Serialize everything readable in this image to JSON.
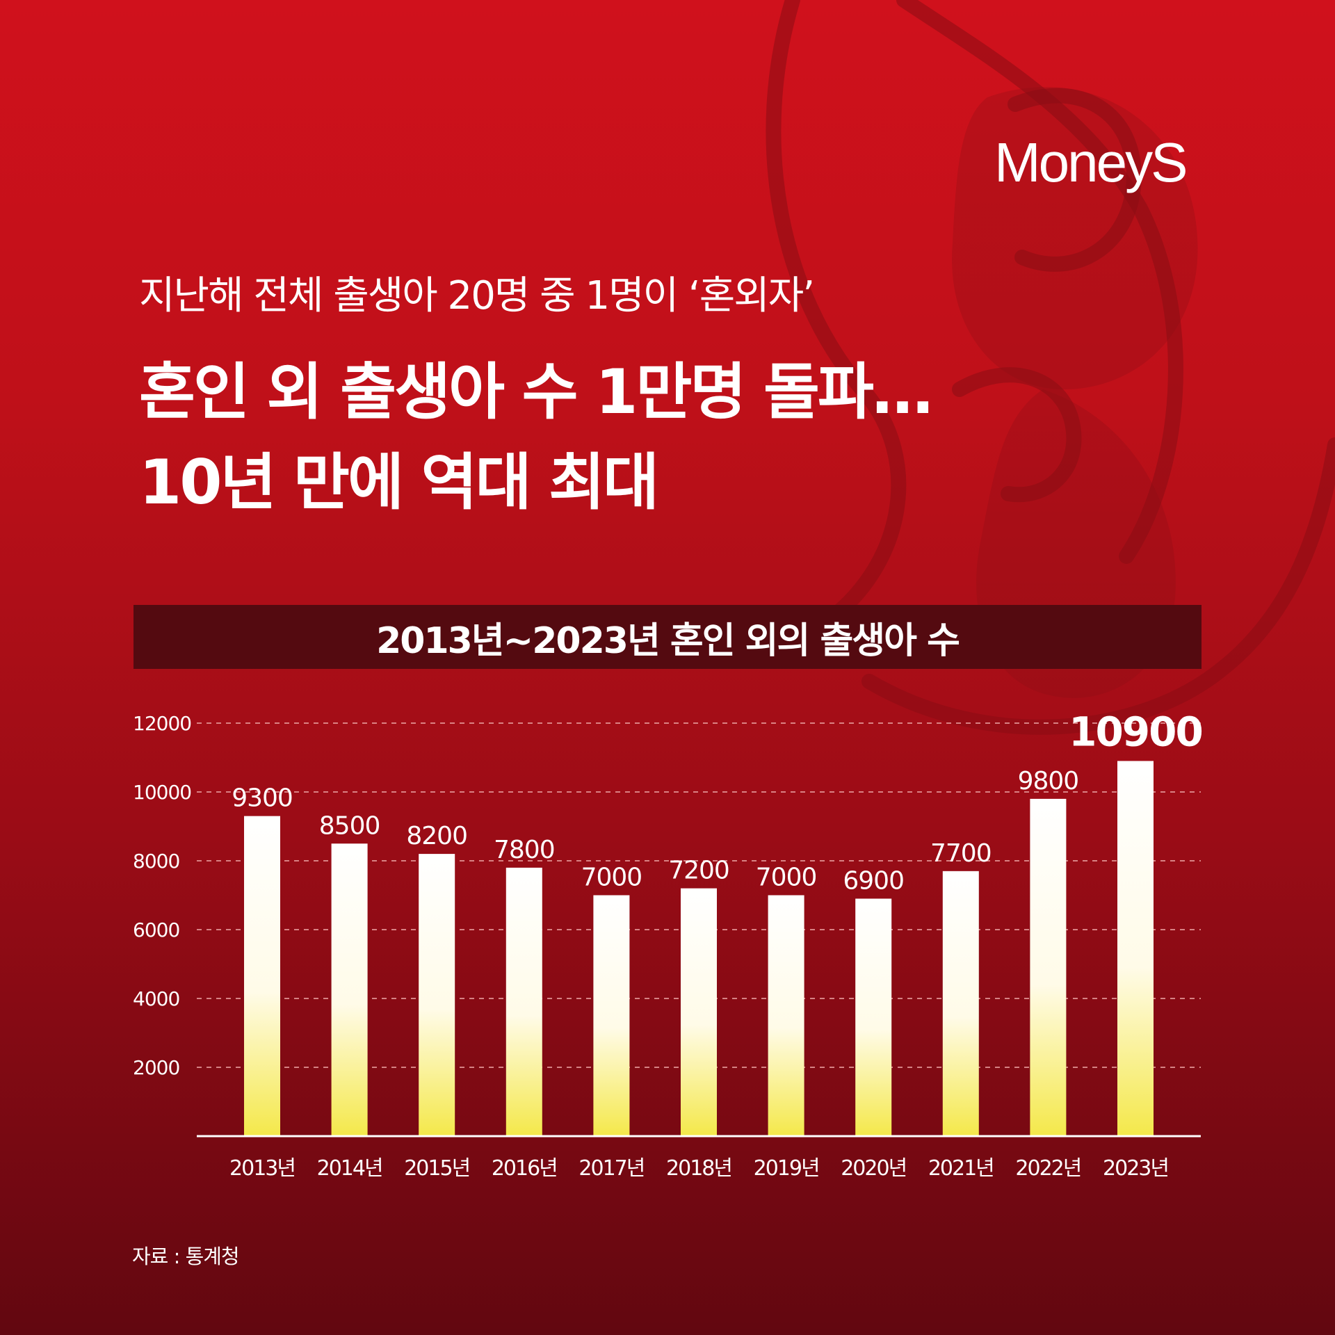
{
  "brand": {
    "logo_text": "MoneyS"
  },
  "header": {
    "subtitle": "지난해 전체 출생아 20명 중 1명이 ‘혼외자’",
    "title_line1": "혼인 외 출생아 수 1만명 돌파…",
    "title_line2": "10년 만에 역대 최대"
  },
  "chart_data": {
    "type": "bar",
    "title": "2013년~2023년 혼인 외의 출생아 수",
    "categories": [
      "2013년",
      "2014년",
      "2015년",
      "2016년",
      "2017년",
      "2018년",
      "2019년",
      "2020년",
      "2021년",
      "2022년",
      "2023년"
    ],
    "values": [
      9300,
      8500,
      8200,
      7800,
      7000,
      7200,
      7000,
      6900,
      7700,
      9800,
      10900
    ],
    "data_labels": [
      "9300",
      "8500",
      "8200",
      "7800",
      "7000",
      "7200",
      "7000",
      "6900",
      "7700",
      "9800",
      "10900"
    ],
    "y_ticks": [
      2000,
      4000,
      6000,
      8000,
      10000,
      12000
    ],
    "y_tick_labels": [
      "2000",
      "4000",
      "6000",
      "8000",
      "10000",
      "12000"
    ],
    "ylim": [
      0,
      12000
    ],
    "grid": true,
    "highlight_last": true,
    "colors": {
      "bar_top": "#ffffff",
      "bar_bottom": "#f4e84a",
      "grid": "#e8a0a0",
      "axis": "#ffffff"
    }
  },
  "footer": {
    "source": "자료 : 통계청"
  }
}
